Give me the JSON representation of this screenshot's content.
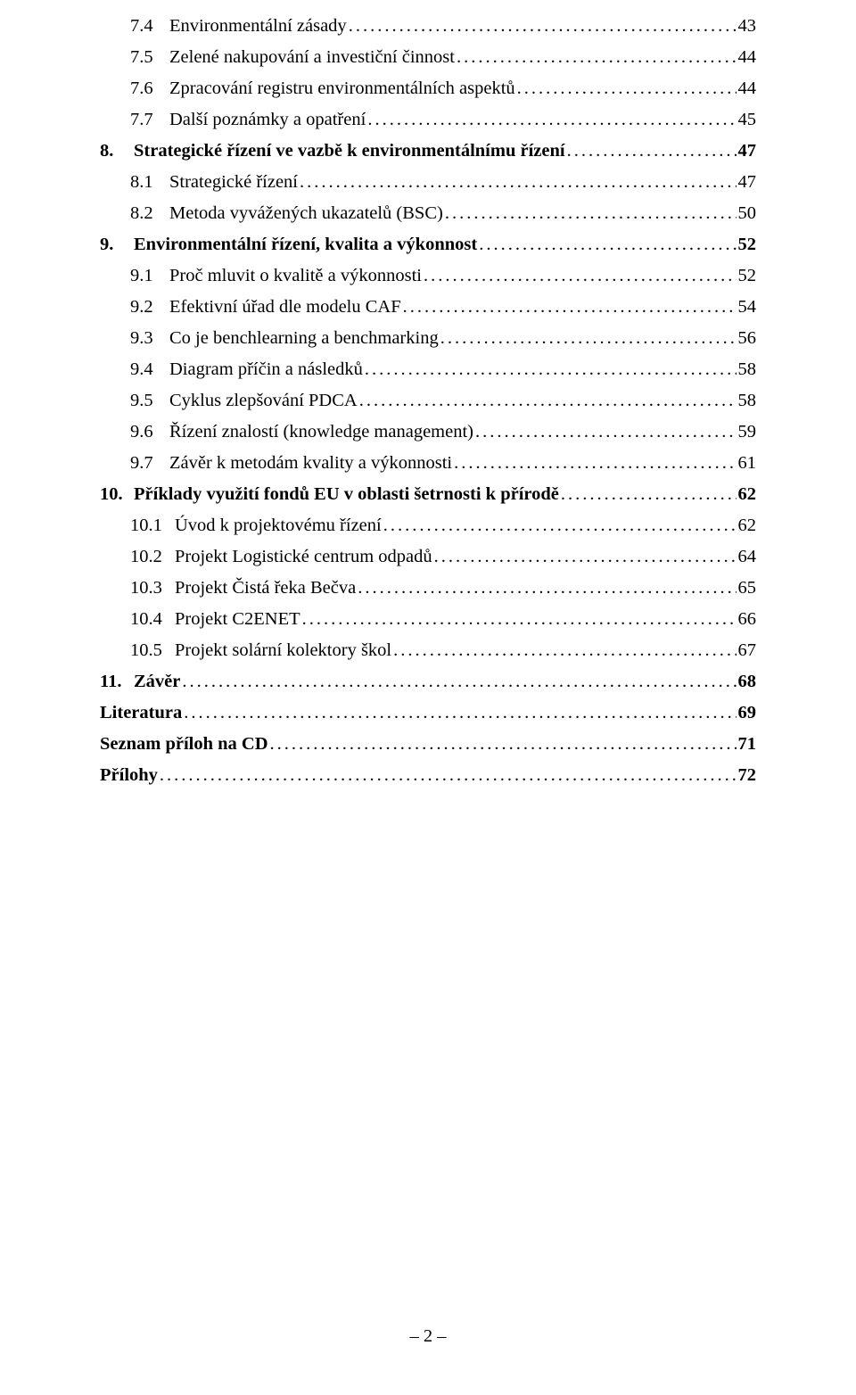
{
  "toc": [
    {
      "level": "lvl2",
      "num": "7.4",
      "title": "Environmentální zásady",
      "page": "43",
      "bold": false
    },
    {
      "level": "lvl2",
      "num": "7.5",
      "title": "Zelené nakupování a investiční činnost",
      "page": "44",
      "bold": false
    },
    {
      "level": "lvl2",
      "num": "7.6",
      "title": "Zpracování registru environmentálních aspektů",
      "page": "44",
      "bold": false
    },
    {
      "level": "lvl2",
      "num": "7.7",
      "title": "Další poznámky a opatření",
      "page": "45",
      "bold": false
    },
    {
      "level": "lvl1",
      "num": "8.",
      "title": "Strategické řízení ve vazbě k environmentálnímu řízení",
      "page": " 47",
      "bold": true
    },
    {
      "level": "lvl2",
      "num": "8.1",
      "title": "Strategické řízení",
      "page": "47",
      "bold": false
    },
    {
      "level": "lvl2",
      "num": "8.2",
      "title": "Metoda vyvážených ukazatelů (BSC)",
      "page": "50",
      "bold": false
    },
    {
      "level": "lvl1",
      "num": "9.",
      "title": "Environmentální řízení, kvalita a výkonnost",
      "page": " 52",
      "bold": true
    },
    {
      "level": "lvl2",
      "num": "9.1",
      "title": "Proč mluvit o kvalitě a výkonnosti",
      "page": "52",
      "bold": false
    },
    {
      "level": "lvl2",
      "num": "9.2",
      "title": "Efektivní úřad dle modelu CAF",
      "page": "54",
      "bold": false
    },
    {
      "level": "lvl2",
      "num": "9.3",
      "title": "Co je benchlearning a benchmarking",
      "page": "56",
      "bold": false
    },
    {
      "level": "lvl2",
      "num": "9.4",
      "title": "Diagram příčin a následků",
      "page": "58",
      "bold": false
    },
    {
      "level": "lvl2",
      "num": "9.5",
      "title": "Cyklus zlepšování PDCA",
      "page": "58",
      "bold": false
    },
    {
      "level": "lvl2",
      "num": "9.6",
      "title": "Řízení znalostí (knowledge management)",
      "page": "59",
      "bold": false
    },
    {
      "level": "lvl2",
      "num": "9.7",
      "title": "Závěr k metodám kvality a výkonnosti",
      "page": "61",
      "bold": false
    },
    {
      "level": "lvl1",
      "num": "10.",
      "title": "Příklady využití fondů EU v oblasti šetrnosti k přírodě",
      "page": " 62",
      "bold": true
    },
    {
      "level": "lvl2b",
      "num": "10.1",
      "title": "Úvod k projektovému řízení",
      "page": "62",
      "bold": false
    },
    {
      "level": "lvl2b",
      "num": "10.2",
      "title": "Projekt Logistické centrum odpadů",
      "page": "64",
      "bold": false
    },
    {
      "level": "lvl2b",
      "num": "10.3",
      "title": "Projekt Čistá řeka Bečva",
      "page": "65",
      "bold": false
    },
    {
      "level": "lvl2b",
      "num": "10.4",
      "title": "Projekt C2ENET",
      "page": "66",
      "bold": false
    },
    {
      "level": "lvl2b",
      "num": "10.5",
      "title": "Projekt solární kolektory škol",
      "page": "67",
      "bold": false
    },
    {
      "level": "lvl1",
      "num": "11.",
      "title": "Závěr",
      "page": " 68",
      "bold": true
    },
    {
      "level": "lvl1f",
      "num": "",
      "title": "Literatura",
      "page": " 69",
      "bold": true
    },
    {
      "level": "lvl1f",
      "num": "",
      "title": "Seznam příloh na CD",
      "page": " 71",
      "bold": true
    },
    {
      "level": "lvl1f",
      "num": "",
      "title": "Přílohy",
      "page": " 72",
      "bold": true
    }
  ],
  "footer": "– 2 –"
}
